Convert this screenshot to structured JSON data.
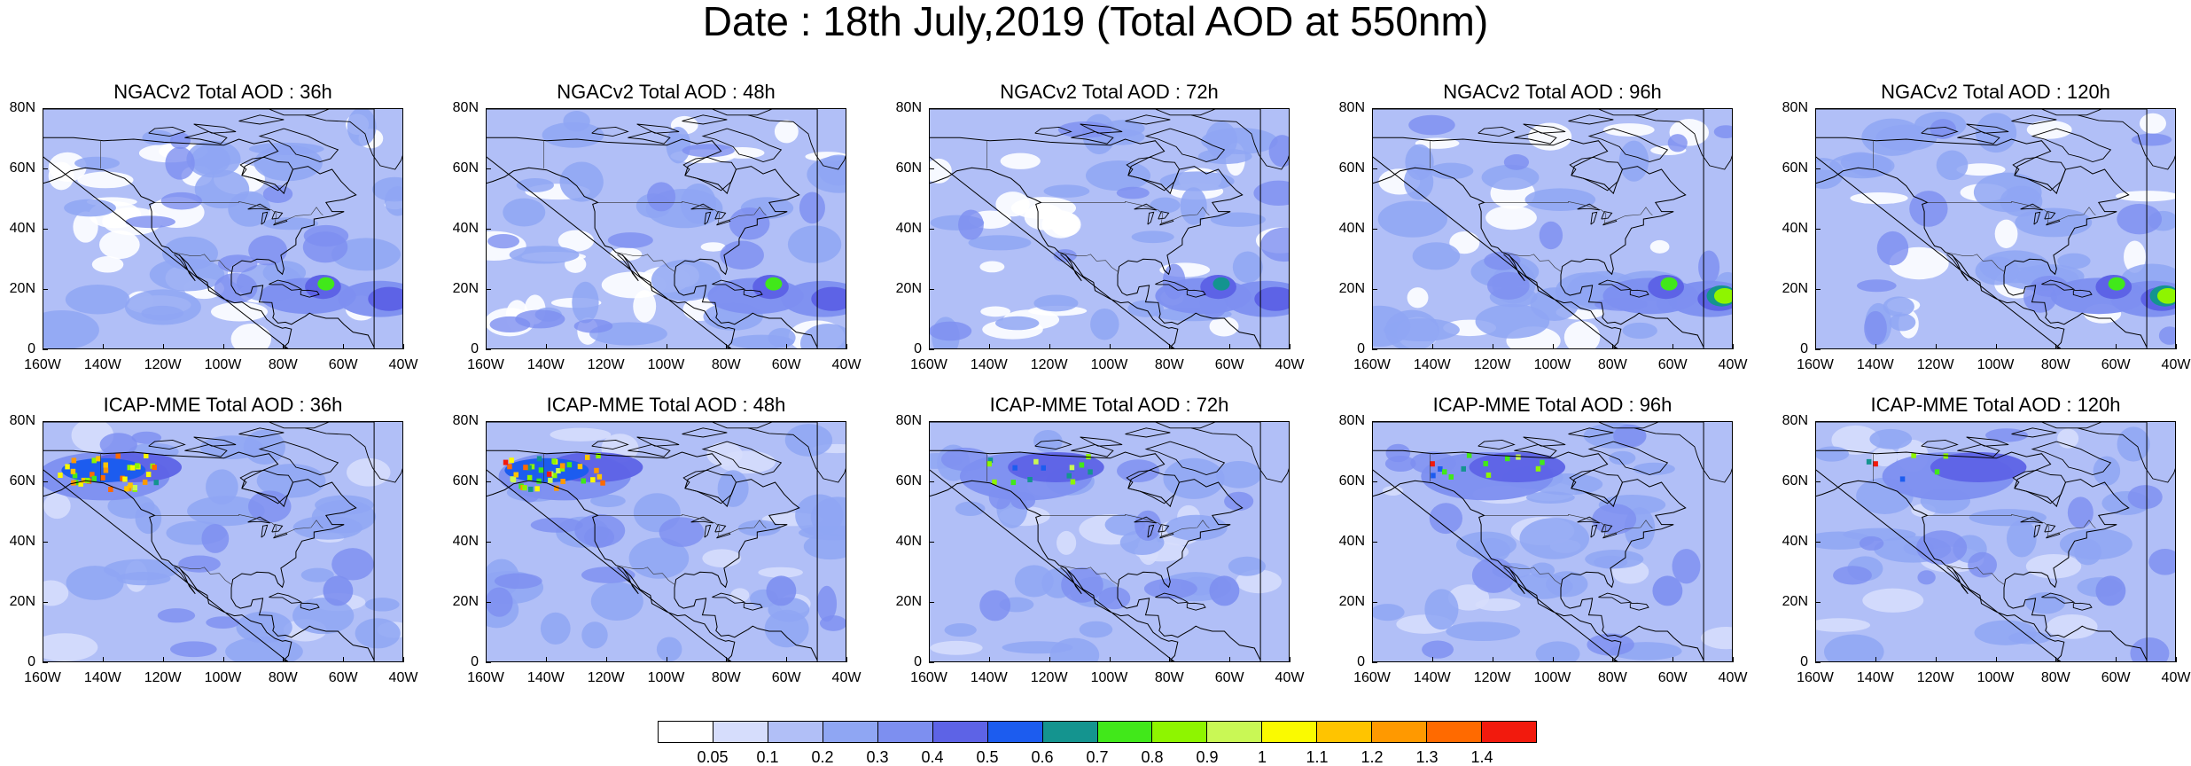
{
  "title": "Date : 18th July,2019 (Total AOD at 550nm)",
  "rows": [
    {
      "model": "NGACv2",
      "panels": [
        {
          "title": "NGACv2 Total AOD : 36h",
          "hotspot_level": 0.7
        },
        {
          "title": "NGACv2 Total AOD : 48h",
          "hotspot_level": 0.7
        },
        {
          "title": "NGACv2 Total AOD : 72h",
          "hotspot_level": 0.6
        },
        {
          "title": "NGACv2 Total AOD : 96h",
          "hotspot_level": 0.9
        },
        {
          "title": "NGACv2 Total AOD : 120h",
          "hotspot_level": 0.9
        }
      ]
    },
    {
      "model": "ICAP-MME",
      "panels": [
        {
          "title": "ICAP-MME Total AOD : 36h",
          "hotspot_level": 1.4
        },
        {
          "title": "ICAP-MME Total AOD : 48h",
          "hotspot_level": 1.4
        },
        {
          "title": "ICAP-MME Total AOD : 72h",
          "hotspot_level": 0.8
        },
        {
          "title": "ICAP-MME Total AOD : 96h",
          "hotspot_level": 1.4
        },
        {
          "title": "ICAP-MME Total AOD : 120h",
          "hotspot_level": 1.4
        }
      ]
    }
  ],
  "axes": {
    "lat_ticks": [
      "80N",
      "60N",
      "40N",
      "20N",
      "0"
    ],
    "lon_ticks": [
      "160W",
      "140W",
      "120W",
      "100W",
      "80W",
      "60W",
      "40W"
    ]
  },
  "colorbar": {
    "labels": [
      "0.05",
      "0.1",
      "0.2",
      "0.3",
      "0.4",
      "0.5",
      "0.6",
      "0.7",
      "0.8",
      "0.9",
      "1",
      "1.1",
      "1.2",
      "1.3",
      "1.4"
    ],
    "colors": [
      "#ffffff",
      "#d6ddfc",
      "#b1bff7",
      "#8fa6f3",
      "#7d8ff0",
      "#5d63e6",
      "#1c5cef",
      "#14948f",
      "#41e81a",
      "#8ef500",
      "#c9f855",
      "#fafa00",
      "#ffc400",
      "#ff9900",
      "#ff6a00",
      "#f21a0d"
    ]
  }
}
